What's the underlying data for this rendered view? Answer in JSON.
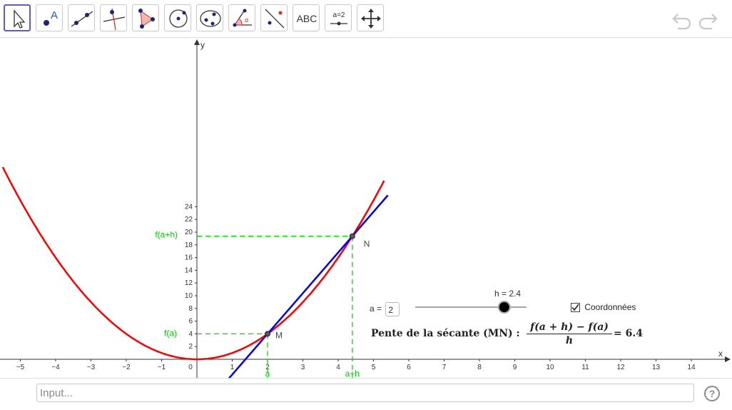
{
  "toolbar": {
    "tools": [
      {
        "name": "move-tool",
        "icon": "cursor-arrow-icon"
      },
      {
        "name": "point-tool",
        "icon": "point-icon",
        "label": "A"
      },
      {
        "name": "line-tool",
        "icon": "line-through-points-icon"
      },
      {
        "name": "perpendicular-tool",
        "icon": "perpendicular-line-icon"
      },
      {
        "name": "polygon-tool",
        "icon": "polygon-icon"
      },
      {
        "name": "circle-tool",
        "icon": "circle-center-point-icon"
      },
      {
        "name": "conic-tool",
        "icon": "ellipse-icon"
      },
      {
        "name": "angle-tool",
        "icon": "angle-icon",
        "label": "α"
      },
      {
        "name": "reflect-tool",
        "icon": "reflect-line-icon"
      },
      {
        "name": "text-tool",
        "icon": "text-icon",
        "label": "ABC"
      },
      {
        "name": "slider-tool",
        "icon": "slider-icon",
        "label": "a=2"
      },
      {
        "name": "move-graphics-tool",
        "icon": "move-arrows-icon"
      }
    ],
    "undo_icon": "undo-icon",
    "redo_icon": "redo-icon"
  },
  "graph": {
    "x_axis_label": "x",
    "y_axis_label": "y",
    "x_ticks": [
      "−5",
      "−4",
      "−3",
      "−2",
      "−1",
      "0",
      "1",
      "2",
      "3",
      "4",
      "5",
      "6",
      "7",
      "8",
      "9",
      "10",
      "11",
      "12",
      "13",
      "14"
    ],
    "y_ticks": [
      "2",
      "4",
      "6",
      "8",
      "10",
      "12",
      "14",
      "16",
      "18",
      "20",
      "22",
      "24"
    ],
    "function_label_fa": "f(a)",
    "function_label_fah": "f(a+h)",
    "x_label_a": "a",
    "x_label_ah": "a+h",
    "point_m_label": "M",
    "point_n_label": "N",
    "curve_color": "#ff0000",
    "secant_color": "#0000ff",
    "guide_color": "#00dd00"
  },
  "chart_data": {
    "type": "line",
    "function": "f(x) = x^2",
    "a": 2,
    "h": 2.4,
    "points": {
      "M": {
        "x": 2,
        "y": 4
      },
      "N": {
        "x": 4.4,
        "y": 19.36
      }
    },
    "secant_slope": 6.4,
    "xlim": [
      -5.5,
      15
    ],
    "ylim": [
      -1,
      25.5
    ]
  },
  "controls": {
    "a_label": "a =",
    "a_value": "2",
    "slider_label": "h = 2.4",
    "slider_value": 2.4,
    "slider_fraction": 0.8,
    "checkbox_label": "Coordonnées",
    "checkbox_checked": true
  },
  "formula": {
    "lead": "Pente de la sécante (MN)  :",
    "numerator": "f(a + h) − f(a)",
    "denominator": "h",
    "result": "= 6.4"
  },
  "input": {
    "placeholder": "Input..."
  },
  "help_label": "?"
}
